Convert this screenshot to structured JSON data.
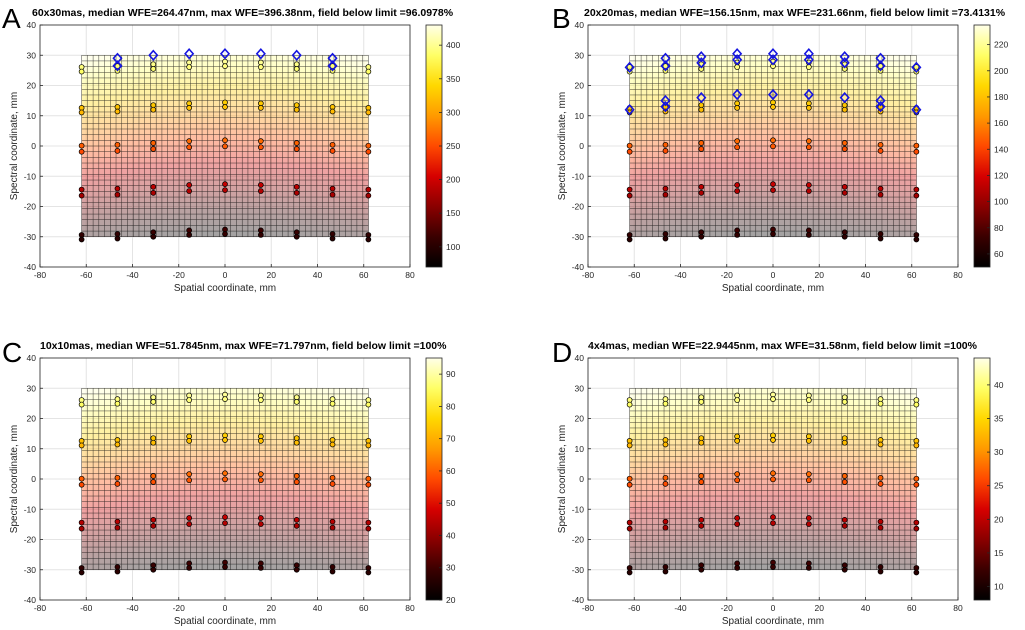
{
  "colormap": {
    "stops": [
      "#000000",
      "#3a0000",
      "#8a0000",
      "#d60000",
      "#ff4a00",
      "#ff9a00",
      "#ffd800",
      "#ffff66",
      "#ffffe8"
    ]
  },
  "chart_data": [
    {
      "type": "scatter",
      "panel_label": "A",
      "title": "60x30mas, median WFE=264.47nm, max WFE=396.38nm, field below limit =96.0978%",
      "xlabel": "Spatial coordinate, mm",
      "ylabel": "Spectral coordinate, mm",
      "xlim": [
        -80,
        80
      ],
      "ylim": [
        -40,
        40
      ],
      "xticks": [
        -80,
        -60,
        -40,
        -20,
        0,
        20,
        40,
        60,
        80
      ],
      "yticks": [
        -40,
        -30,
        -20,
        -10,
        0,
        10,
        20,
        30,
        40
      ],
      "grid": true,
      "field_extent": {
        "x": [
          -62,
          62
        ],
        "y": [
          -30,
          30
        ]
      },
      "colorbar": {
        "min": 70,
        "max": 430,
        "ticks": [
          100,
          150,
          200,
          250,
          300,
          350,
          400
        ]
      },
      "map_value_range": [
        70,
        420
      ],
      "over_limit_points": [
        {
          "x": -46.5,
          "y": 29
        },
        {
          "x": -46.5,
          "y": 26.5
        },
        {
          "x": -31,
          "y": 30
        },
        {
          "x": -15.5,
          "y": 30.5
        },
        {
          "x": 0,
          "y": 30.5
        },
        {
          "x": 15.5,
          "y": 30.5
        },
        {
          "x": 31,
          "y": 30
        },
        {
          "x": 46.5,
          "y": 29
        },
        {
          "x": 46.5,
          "y": 26.5
        }
      ]
    },
    {
      "type": "scatter",
      "panel_label": "B",
      "title": "20x20mas, median WFE=156.15nm, max WFE=231.66nm, field below limit =73.4131%",
      "xlabel": "Spatial coordinate, mm",
      "ylabel": "Spectral coordinate, mm",
      "xlim": [
        -80,
        80
      ],
      "ylim": [
        -40,
        40
      ],
      "xticks": [
        -80,
        -60,
        -40,
        -20,
        0,
        20,
        40,
        60,
        80
      ],
      "yticks": [
        -40,
        -30,
        -20,
        -10,
        0,
        10,
        20,
        30,
        40
      ],
      "grid": true,
      "field_extent": {
        "x": [
          -62,
          62
        ],
        "y": [
          -30,
          30
        ]
      },
      "colorbar": {
        "min": 50,
        "max": 235,
        "ticks": [
          60,
          80,
          100,
          120,
          140,
          160,
          180,
          200,
          220
        ]
      },
      "map_value_range": [
        50,
        230
      ],
      "over_limit_points": [
        {
          "x": -62,
          "y": 26
        },
        {
          "x": -62,
          "y": 12
        },
        {
          "x": -46.5,
          "y": 29
        },
        {
          "x": -46.5,
          "y": 26.5
        },
        {
          "x": -46.5,
          "y": 15
        },
        {
          "x": -46.5,
          "y": 13
        },
        {
          "x": -31,
          "y": 29.5
        },
        {
          "x": -31,
          "y": 27.5
        },
        {
          "x": -31,
          "y": 16
        },
        {
          "x": -15.5,
          "y": 30.5
        },
        {
          "x": -15.5,
          "y": 28.5
        },
        {
          "x": -15.5,
          "y": 17
        },
        {
          "x": 0,
          "y": 30.5
        },
        {
          "x": 0,
          "y": 28.5
        },
        {
          "x": 0,
          "y": 17
        },
        {
          "x": 15.5,
          "y": 30.5
        },
        {
          "x": 15.5,
          "y": 28.5
        },
        {
          "x": 15.5,
          "y": 17
        },
        {
          "x": 31,
          "y": 29.5
        },
        {
          "x": 31,
          "y": 27.5
        },
        {
          "x": 31,
          "y": 16
        },
        {
          "x": 46.5,
          "y": 29
        },
        {
          "x": 46.5,
          "y": 26.5
        },
        {
          "x": 46.5,
          "y": 15
        },
        {
          "x": 46.5,
          "y": 13
        },
        {
          "x": 62,
          "y": 26
        },
        {
          "x": 62,
          "y": 12
        }
      ]
    },
    {
      "type": "scatter",
      "panel_label": "C",
      "title": "10x10mas, median WFE=51.7845nm, max WFE=71.797nm, field below limit =100%",
      "xlabel": "Spatial coordinate, mm",
      "ylabel": "Spectral coordinate, mm",
      "xlim": [
        -80,
        80
      ],
      "ylim": [
        -40,
        40
      ],
      "xticks": [
        -80,
        -60,
        -40,
        -20,
        0,
        20,
        40,
        60,
        80
      ],
      "yticks": [
        -40,
        -30,
        -20,
        -10,
        0,
        10,
        20,
        30,
        40
      ],
      "grid": true,
      "field_extent": {
        "x": [
          -62,
          62
        ],
        "y": [
          -30,
          30
        ]
      },
      "colorbar": {
        "min": 20,
        "max": 95,
        "ticks": [
          20,
          30,
          40,
          50,
          60,
          70,
          80,
          90
        ]
      },
      "map_value_range": [
        20,
        93
      ],
      "over_limit_points": []
    },
    {
      "type": "scatter",
      "panel_label": "D",
      "title": "4x4mas, median WFE=22.9445nm, max WFE=31.58nm, field below limit =100%",
      "xlabel": "Spatial coordinate, mm",
      "ylabel": "Spectral coordinate, mm",
      "xlim": [
        -80,
        80
      ],
      "ylim": [
        -40,
        40
      ],
      "xticks": [
        -80,
        -60,
        -40,
        -20,
        0,
        20,
        40,
        60,
        80
      ],
      "yticks": [
        -40,
        -30,
        -20,
        -10,
        0,
        10,
        20,
        30,
        40
      ],
      "grid": true,
      "field_extent": {
        "x": [
          -62,
          62
        ],
        "y": [
          -30,
          30
        ]
      },
      "colorbar": {
        "min": 8,
        "max": 44,
        "ticks": [
          10,
          15,
          20,
          25,
          30,
          35,
          40
        ]
      },
      "map_value_range": [
        8,
        43
      ],
      "over_limit_points": []
    }
  ],
  "sample_field_points": {
    "x": [
      -62,
      -46.5,
      -31,
      -15.5,
      0,
      15.5,
      31,
      46.5,
      62
    ],
    "y_pairs": [
      [
        27,
        25.5
      ],
      [
        13.5,
        12
      ],
      [
        1,
        -1
      ],
      [
        -13.5,
        -15.5
      ],
      [
        -28.5,
        -30
      ]
    ],
    "y_offsets_by_column": [
      -1.5,
      -1,
      0,
      1,
      1.5,
      1,
      0,
      -1,
      -1.5
    ]
  }
}
